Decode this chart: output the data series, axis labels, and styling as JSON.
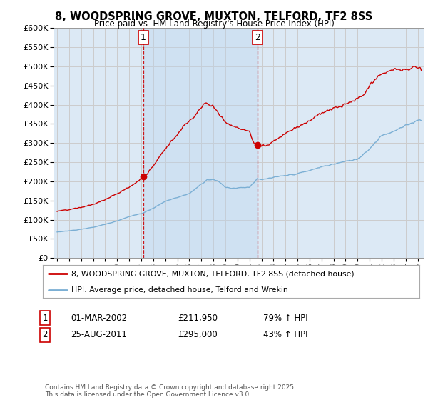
{
  "title": "8, WOODSPRING GROVE, MUXTON, TELFORD, TF2 8SS",
  "subtitle": "Price paid vs. HM Land Registry's House Price Index (HPI)",
  "legend_line1": "8, WOODSPRING GROVE, MUXTON, TELFORD, TF2 8SS (detached house)",
  "legend_line2": "HPI: Average price, detached house, Telford and Wrekin",
  "footnote": "Contains HM Land Registry data © Crown copyright and database right 2025.\nThis data is licensed under the Open Government Licence v3.0.",
  "transaction1_date": "01-MAR-2002",
  "transaction1_price": "£211,950",
  "transaction1_hpi": "79% ↑ HPI",
  "transaction2_date": "25-AUG-2011",
  "transaction2_price": "£295,000",
  "transaction2_hpi": "43% ↑ HPI",
  "vline1_x": 2002.17,
  "vline2_x": 2011.65,
  "marker1_red_y": 211950,
  "marker1_red_x": 2002.17,
  "marker2_red_y": 295000,
  "marker2_red_x": 2011.65,
  "red_color": "#cc0000",
  "blue_color": "#7bafd4",
  "vline_color": "#cc0000",
  "bg_color": "#dce9f5",
  "highlight_color": "#ddeeff",
  "plot_bg": "#ffffff",
  "grid_color": "#cccccc",
  "ylim": [
    0,
    600000
  ],
  "yticks": [
    0,
    50000,
    100000,
    150000,
    200000,
    250000,
    300000,
    350000,
    400000,
    450000,
    500000,
    550000,
    600000
  ],
  "xlim": [
    1994.7,
    2025.5
  ]
}
